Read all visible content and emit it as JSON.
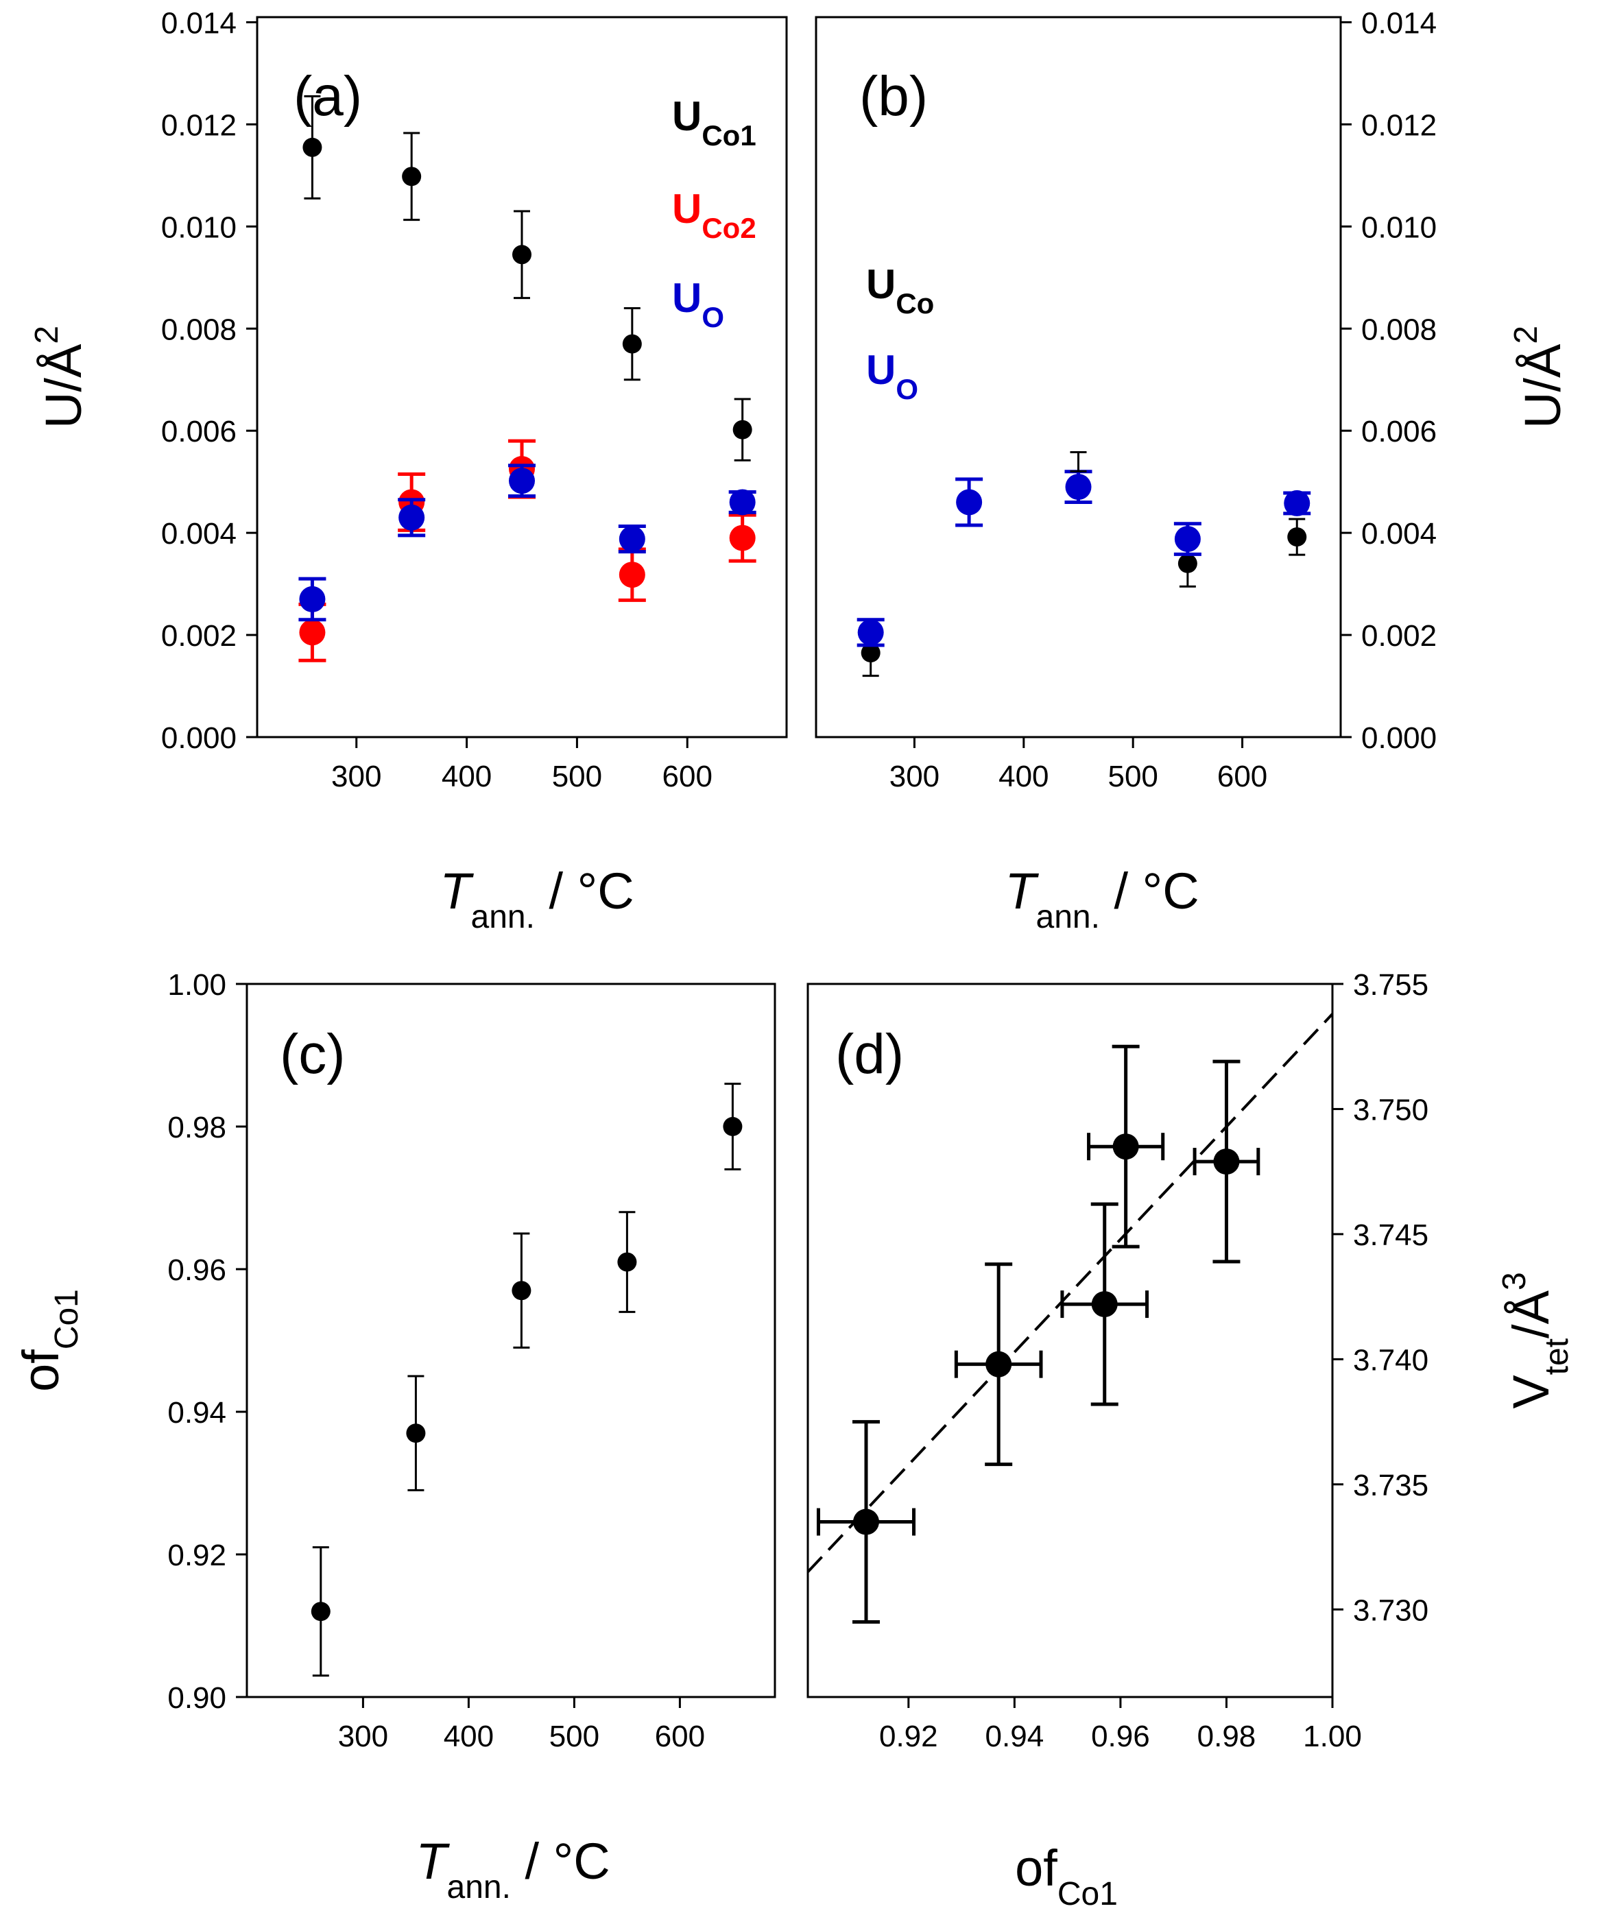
{
  "chart_data": [
    {
      "id": "a",
      "type": "scatter",
      "panel_label": "(a)",
      "xlabel": {
        "main": "T",
        "sub": "ann.",
        "tail": " / °C"
      },
      "ylabel": {
        "main": "U/Å",
        "sup": "2"
      },
      "xlim": [
        210,
        690
      ],
      "ylim": [
        0,
        0.0141
      ],
      "xticks": [
        300,
        400,
        500,
        600
      ],
      "yticks": [
        0.0,
        0.002,
        0.004,
        0.006,
        0.008,
        0.01,
        0.012,
        0.014
      ],
      "ytick_labels": [
        "0.000",
        "0.002",
        "0.004",
        "0.006",
        "0.008",
        "0.010",
        "0.012",
        "0.014"
      ],
      "ytick_side": "left",
      "legend": [
        {
          "main": "U",
          "sub": "Co1",
          "color": "#000000"
        },
        {
          "main": "U",
          "sub": "Co2",
          "color": "#ff0000"
        },
        {
          "main": "U",
          "sub": "O",
          "color": "#0000cc"
        }
      ],
      "series": [
        {
          "name": "U_Co1",
          "color": "#000000",
          "size": "small",
          "points": [
            {
              "x": 260,
              "y": 0.01155,
              "err": 0.001
            },
            {
              "x": 350,
              "y": 0.01098,
              "err": 0.00085
            },
            {
              "x": 450,
              "y": 0.00945,
              "err": 0.00085
            },
            {
              "x": 550,
              "y": 0.0077,
              "err": 0.0007
            },
            {
              "x": 650,
              "y": 0.00602,
              "err": 0.0006
            }
          ]
        },
        {
          "name": "U_Co2",
          "color": "#ff0000",
          "size": "large",
          "points": [
            {
              "x": 260,
              "y": 0.00205,
              "err": 0.00055
            },
            {
              "x": 350,
              "y": 0.0046,
              "err": 0.00055
            },
            {
              "x": 450,
              "y": 0.00525,
              "err": 0.00055
            },
            {
              "x": 550,
              "y": 0.00318,
              "err": 0.0005
            },
            {
              "x": 650,
              "y": 0.0039,
              "err": 0.00045
            }
          ]
        },
        {
          "name": "U_O",
          "color": "#0000cc",
          "size": "large",
          "points": [
            {
              "x": 260,
              "y": 0.0027,
              "err": 0.0004
            },
            {
              "x": 350,
              "y": 0.0043,
              "err": 0.00035
            },
            {
              "x": 450,
              "y": 0.00502,
              "err": 0.0003
            },
            {
              "x": 550,
              "y": 0.00388,
              "err": 0.00025
            },
            {
              "x": 650,
              "y": 0.0046,
              "err": 0.0002
            }
          ]
        }
      ]
    },
    {
      "id": "b",
      "type": "scatter",
      "panel_label": "(b)",
      "xlabel": {
        "main": "T",
        "sub": "ann.",
        "tail": " / °C"
      },
      "ylabel": {
        "main": "U/Å",
        "sup": "2"
      },
      "xlim": [
        210,
        690
      ],
      "ylim": [
        0,
        0.0141
      ],
      "xticks": [
        300,
        400,
        500,
        600
      ],
      "yticks": [
        0.0,
        0.002,
        0.004,
        0.006,
        0.008,
        0.01,
        0.012,
        0.014
      ],
      "ytick_labels": [
        "0.000",
        "0.002",
        "0.004",
        "0.006",
        "0.008",
        "0.010",
        "0.012",
        "0.014"
      ],
      "ytick_side": "right",
      "legend": [
        {
          "main": "U",
          "sub": "Co",
          "color": "#000000"
        },
        {
          "main": "U",
          "sub": "O",
          "color": "#0000cc"
        }
      ],
      "series": [
        {
          "name": "U_Co",
          "color": "#000000",
          "size": "small",
          "points": [
            {
              "x": 260,
              "y": 0.00165,
              "err": 0.00045
            },
            {
              "x": 550,
              "y": 0.0034,
              "err": 0.00045
            },
            {
              "x": 650,
              "y": 0.00392,
              "err": 0.00035
            }
          ]
        },
        {
          "name": "U_O",
          "color": "#0000cc",
          "size": "large",
          "points": [
            {
              "x": 260,
              "y": 0.00205,
              "err": 0.00025
            },
            {
              "x": 350,
              "y": 0.0046,
              "err": 0.00045
            },
            {
              "x": 450,
              "y": 0.0049,
              "err": 0.0003
            },
            {
              "x": 550,
              "y": 0.00388,
              "err": 0.0003
            },
            {
              "x": 650,
              "y": 0.00458,
              "err": 0.0002
            }
          ]
        }
      ],
      "extra_errorbars": [
        {
          "x": 450,
          "y": 0.0049,
          "err": 0.00068,
          "color": "#000000"
        }
      ]
    },
    {
      "id": "c",
      "type": "scatter",
      "panel_label": "(c)",
      "xlabel": {
        "main": "T",
        "sub": "ann.",
        "tail": " / °C"
      },
      "ylabel": {
        "main": "of",
        "sub": "Co1"
      },
      "xlim": [
        190,
        690
      ],
      "ylim": [
        0.9,
        1.0
      ],
      "xticks": [
        300,
        400,
        500,
        600
      ],
      "yticks": [
        0.9,
        0.92,
        0.94,
        0.96,
        0.98,
        1.0
      ],
      "ytick_labels": [
        "0.90",
        "0.92",
        "0.94",
        "0.96",
        "0.98",
        "1.00"
      ],
      "ytick_side": "left",
      "series": [
        {
          "name": "of_Co1",
          "color": "#000000",
          "size": "small",
          "points": [
            {
              "x": 260,
              "y": 0.912,
              "err": 0.009
            },
            {
              "x": 350,
              "y": 0.937,
              "err": 0.008
            },
            {
              "x": 450,
              "y": 0.957,
              "err": 0.008
            },
            {
              "x": 550,
              "y": 0.961,
              "err": 0.007
            },
            {
              "x": 650,
              "y": 0.98,
              "err": 0.006
            }
          ]
        }
      ]
    },
    {
      "id": "d",
      "type": "scatter",
      "panel_label": "(d)",
      "xlabel": {
        "main": "of",
        "sub": "Co1"
      },
      "ylabel": {
        "main": "V",
        "sub": "tet",
        "tail": "/Å",
        "sup": "3"
      },
      "xlim": [
        0.901,
        1.0
      ],
      "ylim": [
        3.7265,
        3.755
      ],
      "xticks": [
        0.92,
        0.94,
        0.96,
        0.98,
        1.0
      ],
      "xtick_labels": [
        "0.92",
        "0.94",
        "0.96",
        "0.98",
        "1.00"
      ],
      "yticks": [
        3.73,
        3.735,
        3.74,
        3.745,
        3.75,
        3.755
      ],
      "ytick_labels": [
        "3.730",
        "3.735",
        "3.740",
        "3.745",
        "3.750",
        "3.755"
      ],
      "ytick_side": "right",
      "series": [
        {
          "name": "V_tet",
          "color": "#000000",
          "size": "large",
          "points": [
            {
              "x": 0.912,
              "y": 3.7335,
              "yerr": 0.004,
              "xerr": 0.009
            },
            {
              "x": 0.937,
              "y": 3.7398,
              "yerr": 0.004,
              "xerr": 0.008
            },
            {
              "x": 0.957,
              "y": 3.7422,
              "yerr": 0.004,
              "xerr": 0.008
            },
            {
              "x": 0.961,
              "y": 3.7485,
              "yerr": 0.004,
              "xerr": 0.007
            },
            {
              "x": 0.98,
              "y": 3.7479,
              "yerr": 0.004,
              "xerr": 0.006
            }
          ]
        }
      ],
      "fit_line": {
        "style": "dashed",
        "x": [
          0.901,
          1.0
        ],
        "y": [
          3.7315,
          3.7538
        ]
      }
    }
  ]
}
